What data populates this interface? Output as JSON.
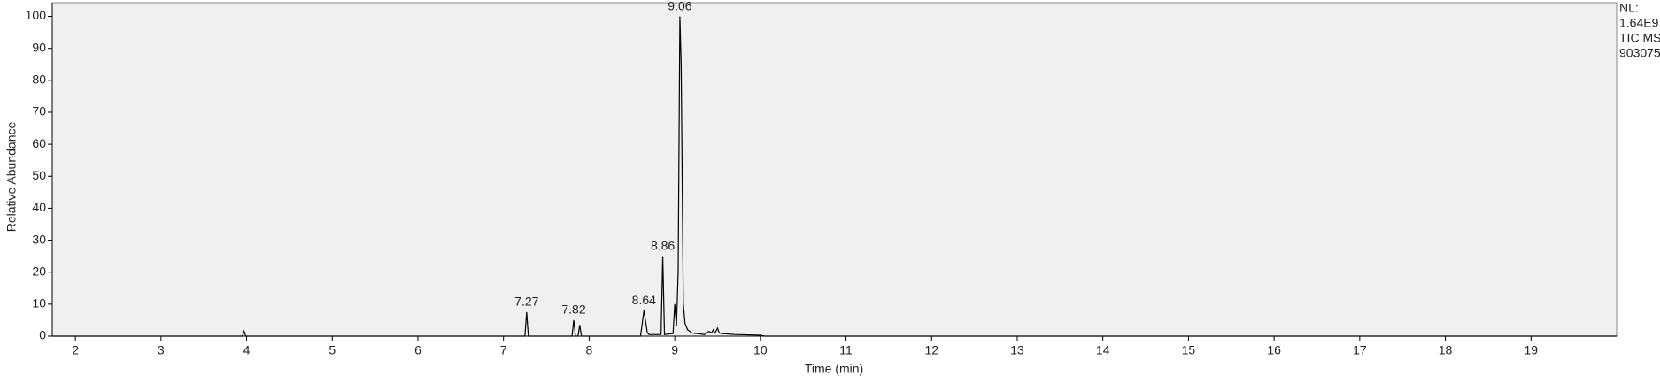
{
  "chart_data": {
    "type": "line",
    "x_label": "Time (min)",
    "y_label": "Relative Abundance",
    "xlim": [
      1.73,
      20.0
    ],
    "ylim": [
      0,
      104.3
    ],
    "xticks": [
      2,
      3,
      4,
      5,
      6,
      7,
      8,
      9,
      10,
      11,
      12,
      13,
      14,
      15,
      16,
      17,
      18,
      19
    ],
    "yticks": [
      0,
      10,
      20,
      30,
      40,
      50,
      60,
      70,
      80,
      90,
      100
    ],
    "color": "#000000",
    "x": [
      1.73,
      3.95,
      3.97,
      3.99,
      7.25,
      7.27,
      7.29,
      7.8,
      7.82,
      7.84,
      7.87,
      7.89,
      7.91,
      8.6,
      8.64,
      8.68,
      8.7,
      8.84,
      8.86,
      8.88,
      8.98,
      9.0,
      9.02,
      9.04,
      9.06,
      9.075,
      9.09,
      9.1,
      9.12,
      9.15,
      9.2,
      9.35,
      9.4,
      9.43,
      9.45,
      9.47,
      9.5,
      9.52,
      9.55,
      9.7,
      10.0,
      10.05,
      20.0
    ],
    "values": [
      0,
      0,
      1.5,
      0,
      0,
      7.5,
      0,
      0,
      5,
      0,
      0,
      3.5,
      0,
      0,
      8,
      1,
      0.5,
      0.5,
      25,
      0.5,
      0.8,
      10,
      3,
      20,
      100,
      85,
      40,
      10,
      4,
      2,
      1,
      0.5,
      1.5,
      1,
      2,
      1,
      2.5,
      1,
      0.8,
      0.5,
      0.3,
      0,
      0
    ],
    "annotations": [
      {
        "label": "7.27",
        "x": 7.27,
        "y": 7.5
      },
      {
        "label": "7.82",
        "x": 7.82,
        "y": 5
      },
      {
        "label": "8.64",
        "x": 8.64,
        "y": 8
      },
      {
        "label": "8.86",
        "x": 8.86,
        "y": 25
      },
      {
        "label": "9.06",
        "x": 9.06,
        "y": 100
      }
    ],
    "info": [
      "NL:",
      "1.64E9",
      "TIC MS",
      "903075"
    ]
  }
}
